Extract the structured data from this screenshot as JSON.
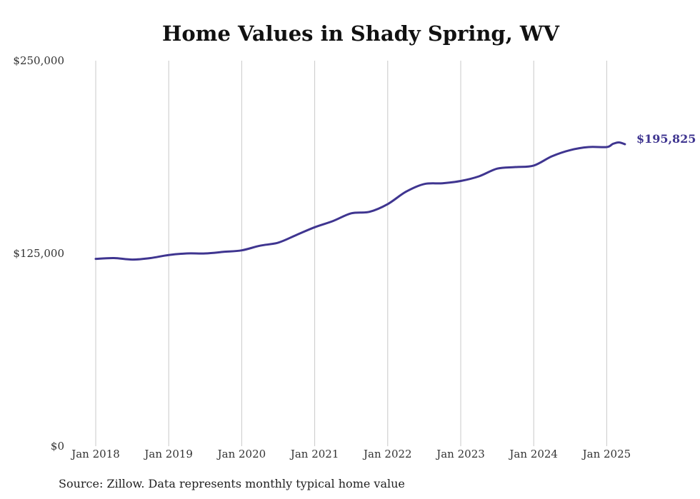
{
  "chart_data": {
    "type": "line",
    "title": "Home Values in Shady Spring, WV",
    "source": "Source: Zillow. Data represents monthly typical home value",
    "ylim": [
      0,
      250000
    ],
    "y_ticks": [
      "$0",
      "$125,000",
      "$250,000"
    ],
    "x_ticks": [
      "Jan 2018",
      "Jan 2019",
      "Jan 2020",
      "Jan 2021",
      "Jan 2022",
      "Jan 2023",
      "Jan 2024",
      "Jan 2025"
    ],
    "x_range": [
      "2018-01",
      "2025-04"
    ],
    "grid": "vertical",
    "line_color": "#3f3590",
    "end_label": "$195,825",
    "series": [
      {
        "x": [
          "2018-01",
          "2018-04",
          "2018-07",
          "2018-10",
          "2019-01",
          "2019-04",
          "2019-07",
          "2019-10",
          "2020-01",
          "2020-04",
          "2020-07",
          "2020-10",
          "2021-01",
          "2021-04",
          "2021-07",
          "2021-10",
          "2022-01",
          "2022-04",
          "2022-07",
          "2022-10",
          "2023-01",
          "2023-04",
          "2023-07",
          "2023-10",
          "2024-01",
          "2024-04",
          "2024-07",
          "2024-10",
          "2025-01",
          "2025-02",
          "2025-03",
          "2025-04"
        ],
        "values": [
          121500,
          122000,
          121000,
          122000,
          124000,
          125000,
          125000,
          126000,
          127000,
          130000,
          132000,
          137000,
          142000,
          146000,
          151000,
          152000,
          157000,
          165000,
          170000,
          170500,
          172000,
          175000,
          180000,
          181000,
          182000,
          188000,
          192000,
          194000,
          194000,
          196000,
          197000,
          195825
        ]
      }
    ]
  }
}
